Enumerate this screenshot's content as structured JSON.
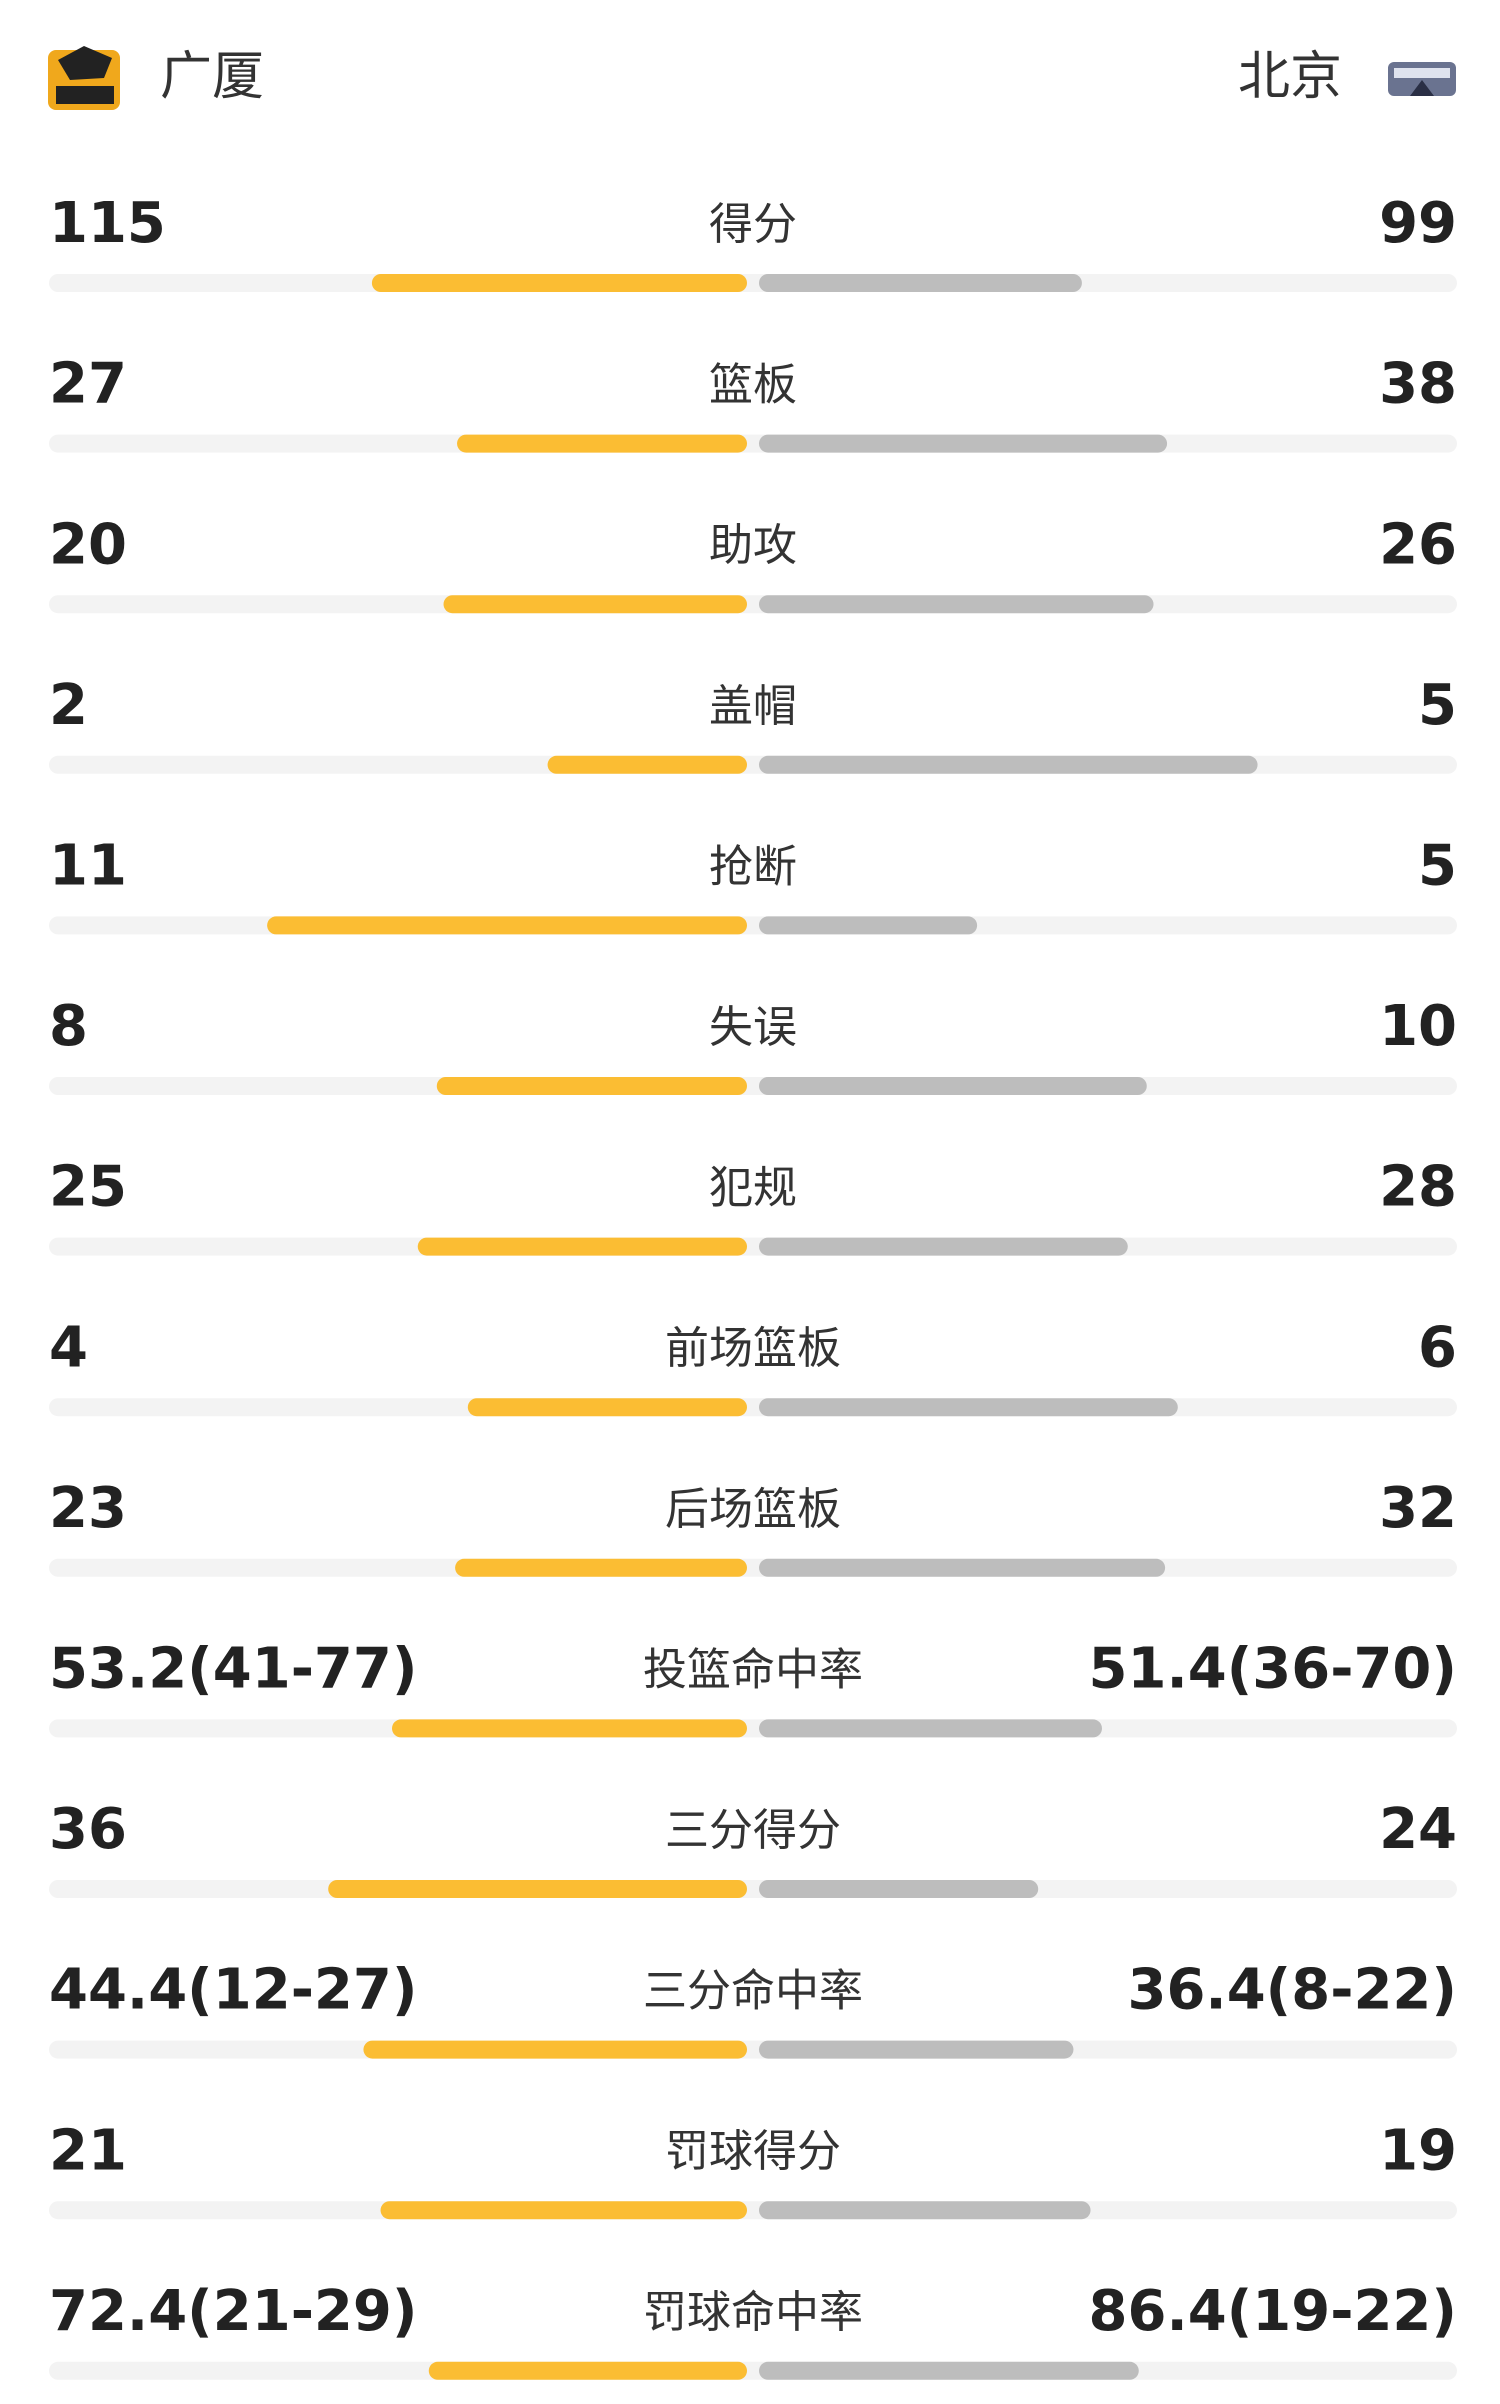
{
  "header": {
    "home": "广厦",
    "away": "北京"
  },
  "rows": [
    {
      "label": "得分",
      "home": 115,
      "away": 99
    },
    {
      "label": "篮板",
      "home": 27,
      "away": 38
    },
    {
      "label": "助攻",
      "home": 20,
      "away": 26
    },
    {
      "label": "盖帽",
      "home": 2,
      "away": 5
    },
    {
      "label": "抢断",
      "home": 11,
      "away": 5
    },
    {
      "label": "失误",
      "home": 8,
      "away": 10
    },
    {
      "label": "犯规",
      "home": 25,
      "away": 28
    },
    {
      "label": "前场篮板",
      "home": 4,
      "away": 6
    },
    {
      "label": "后场篮板",
      "home": 23,
      "away": 32
    },
    {
      "label": "投篮命中率",
      "home": 53.2,
      "home_label": "53.2(41-77)",
      "away": 51.4,
      "away_label": "51.4(36-70)"
    },
    {
      "label": "三分得分",
      "home": 36,
      "away": 24
    },
    {
      "label": "三分命中率",
      "home": 44.4,
      "home_label": "44.4(12-27)",
      "away": 36.4,
      "away_label": "36.4(8-22)"
    },
    {
      "label": "罚球得分",
      "home": 21,
      "away": 19
    },
    {
      "label": "罚球命中率",
      "home": 72.4,
      "home_label": "72.4(21-29)",
      "away": 86.4,
      "away_label": "86.4(19-22)"
    }
  ]
}
